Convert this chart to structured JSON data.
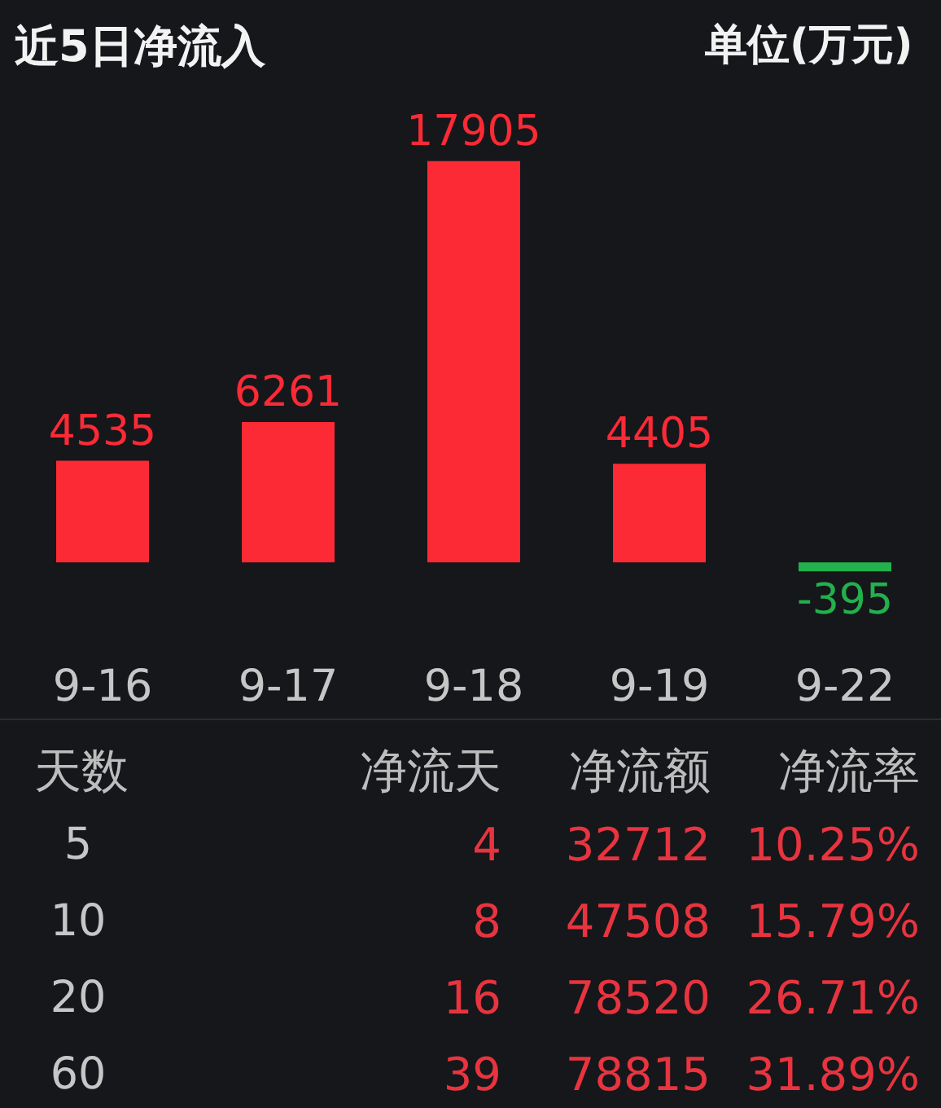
{
  "chart_data": [
    {
      "type": "bar",
      "title": "近5日净流入",
      "annotations": [
        "单位(万元)"
      ],
      "categories": [
        "9-16",
        "9-17",
        "9-18",
        "9-19",
        "9-22"
      ],
      "values": [
        4535,
        6261,
        17905,
        4405,
        -395
      ],
      "colors": [
        "#fc2a35",
        "#fc2a35",
        "#fc2a35",
        "#fc2a35",
        "#22b14c"
      ],
      "data_labels": true
    },
    {
      "type": "other",
      "ylabel": "天数",
      "categories": [
        "净流天",
        "净流额",
        "净流率"
      ],
      "y_categories": [
        "5",
        "10",
        "20",
        "60"
      ],
      "cell_labels": [
        [
          "4",
          "32712",
          "10.25%"
        ],
        [
          "8",
          "47508",
          "15.79%"
        ],
        [
          "16",
          "78520",
          "26.71%"
        ],
        [
          "39",
          "78815",
          "31.89%"
        ]
      ],
      "color": "#e8343f"
    }
  ]
}
